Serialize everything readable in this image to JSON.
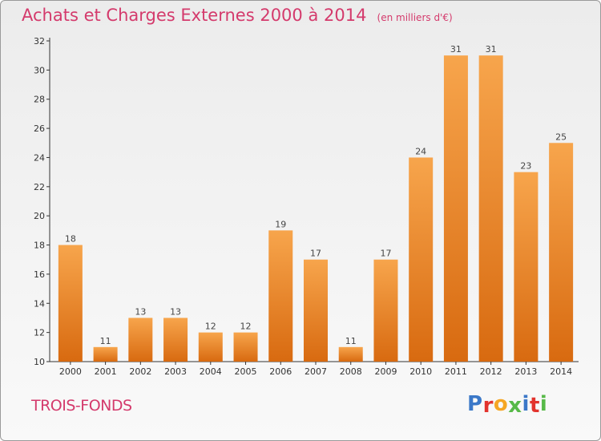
{
  "header": {
    "title": "Achats et Charges Externes 2000 à 2014",
    "unit": "(en milliers d'€)"
  },
  "footer": {
    "location": "TROIS-FONDS",
    "brand": "Proxiti",
    "brand_colors": [
      "#3b78c8",
      "#e2332d",
      "#f5a623",
      "#57b948",
      "#3b78c8",
      "#e2332d",
      "#57b948"
    ]
  },
  "colors": {
    "title": "#d43a6c",
    "bar_top": "#f7a54c",
    "bar_bottom": "#d86a10",
    "axis": "#333333"
  },
  "chart_data": {
    "type": "bar",
    "title": "Achats et Charges Externes 2000 à 2014",
    "subtitle": "(en milliers d'€)",
    "categories": [
      "2000",
      "2001",
      "2002",
      "2003",
      "2004",
      "2005",
      "2006",
      "2007",
      "2008",
      "2009",
      "2010",
      "2011",
      "2012",
      "2013",
      "2014"
    ],
    "values": [
      18,
      11,
      13,
      13,
      12,
      12,
      19,
      17,
      11,
      17,
      24,
      31,
      31,
      23,
      25
    ],
    "ylim": [
      10,
      32
    ],
    "yticks": [
      10,
      12,
      14,
      16,
      18,
      20,
      22,
      24,
      26,
      28,
      30,
      32
    ],
    "grid": false,
    "legend": "none"
  }
}
